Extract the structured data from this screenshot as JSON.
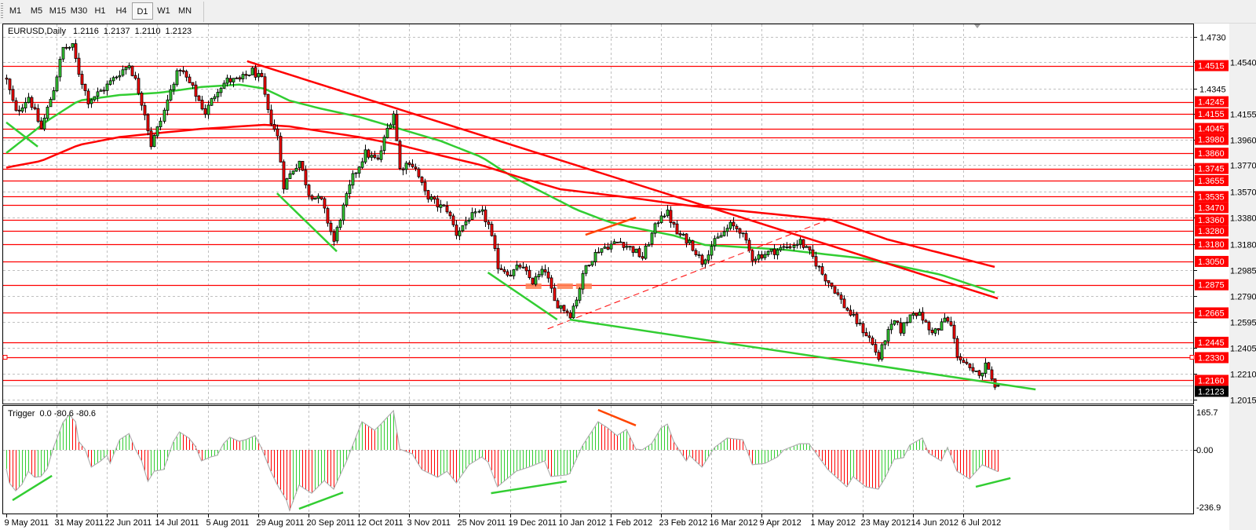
{
  "toolbar": {
    "timeframes": [
      "M1",
      "M5",
      "M15",
      "M30",
      "H1",
      "H4",
      "D1",
      "W1",
      "MN"
    ],
    "selected": "D1"
  },
  "chart": {
    "symbol": "EURUSD,Daily",
    "ohlc": [
      "1.2116",
      "1.2137",
      "1.2110",
      "1.2123"
    ]
  },
  "chart_data": {
    "type": "candlestick",
    "symbol": "EURUSD",
    "timeframe": "Daily",
    "last_bar": {
      "open": 1.2116,
      "high": 1.2137,
      "low": 1.211,
      "close": 1.2123
    },
    "close_path": [
      [
        0,
        1.4404
      ],
      [
        3,
        1.4162
      ],
      [
        7,
        1.4283
      ],
      [
        11,
        1.4042
      ],
      [
        15,
        1.4343
      ],
      [
        18,
        1.4645
      ],
      [
        21,
        1.4656
      ],
      [
        23,
        1.4463
      ],
      [
        26,
        1.4253
      ],
      [
        31,
        1.4343
      ],
      [
        36,
        1.4463
      ],
      [
        39,
        1.4524
      ],
      [
        41,
        1.4404
      ],
      [
        44,
        1.4162
      ],
      [
        46,
        1.3921
      ],
      [
        49,
        1.4102
      ],
      [
        53,
        1.4404
      ],
      [
        55,
        1.4494
      ],
      [
        59,
        1.4343
      ],
      [
        63,
        1.4162
      ],
      [
        67,
        1.4343
      ],
      [
        70,
        1.4404
      ],
      [
        74,
        1.4404
      ],
      [
        78,
        1.4476
      ],
      [
        81,
        1.4404
      ],
      [
        83,
        1.4162
      ],
      [
        86,
        1.3981
      ],
      [
        88,
        1.362
      ],
      [
        91,
        1.374
      ],
      [
        93,
        1.3801
      ],
      [
        96,
        1.356
      ],
      [
        100,
        1.3499
      ],
      [
        104,
        1.3198
      ],
      [
        106,
        1.3379
      ],
      [
        110,
        1.368
      ],
      [
        114,
        1.3861
      ],
      [
        118,
        1.3801
      ],
      [
        121,
        1.4042
      ],
      [
        123,
        1.4162
      ],
      [
        125,
        1.374
      ],
      [
        128,
        1.3801
      ],
      [
        130,
        1.374
      ],
      [
        133,
        1.356
      ],
      [
        137,
        1.347
      ],
      [
        140,
        1.3439
      ],
      [
        143,
        1.3258
      ],
      [
        147,
        1.3379
      ],
      [
        151,
        1.3409
      ],
      [
        153,
        1.3319
      ],
      [
        156,
        1.3017
      ],
      [
        160,
        1.2957
      ],
      [
        163,
        1.3017
      ],
      [
        167,
        1.2896
      ],
      [
        171,
        1.2988
      ],
      [
        174,
        1.2746
      ],
      [
        176,
        1.2716
      ],
      [
        179,
        1.2655
      ],
      [
        181,
        1.2776
      ],
      [
        184,
        1.3017
      ],
      [
        188,
        1.3137
      ],
      [
        191,
        1.3168
      ],
      [
        195,
        1.3198
      ],
      [
        199,
        1.3137
      ],
      [
        202,
        1.3078
      ],
      [
        204,
        1.3198
      ],
      [
        208,
        1.3409
      ],
      [
        210,
        1.3409
      ],
      [
        213,
        1.3258
      ],
      [
        217,
        1.3198
      ],
      [
        221,
        1.3047
      ],
      [
        224,
        1.3168
      ],
      [
        230,
        1.3319
      ],
      [
        233,
        1.3288
      ],
      [
        237,
        1.3078
      ],
      [
        241,
        1.3108
      ],
      [
        245,
        1.3137
      ],
      [
        249,
        1.3168
      ],
      [
        252,
        1.3198
      ],
      [
        256,
        1.3078
      ],
      [
        259,
        1.2957
      ],
      [
        263,
        1.2837
      ],
      [
        266,
        1.2716
      ],
      [
        270,
        1.2596
      ],
      [
        274,
        1.2475
      ],
      [
        277,
        1.2324
      ],
      [
        279,
        1.2475
      ],
      [
        282,
        1.2596
      ],
      [
        284,
        1.2535
      ],
      [
        288,
        1.2686
      ],
      [
        291,
        1.2625
      ],
      [
        293,
        1.2535
      ],
      [
        296,
        1.2535
      ],
      [
        298,
        1.2625
      ],
      [
        300,
        1.2565
      ],
      [
        302,
        1.2355
      ],
      [
        305,
        1.2263
      ],
      [
        307,
        1.2204
      ],
      [
        310,
        1.2234
      ],
      [
        311,
        1.227
      ],
      [
        312,
        1.227
      ],
      [
        313,
        1.216
      ],
      [
        314,
        1.2135
      ],
      [
        315,
        1.2123
      ]
    ],
    "moving_averages": [
      {
        "color": "#32cd32",
        "points": [
          [
            0,
            1.3861
          ],
          [
            13,
            1.4102
          ],
          [
            23,
            1.4253
          ],
          [
            36,
            1.4295
          ],
          [
            49,
            1.4313
          ],
          [
            62,
            1.4355
          ],
          [
            74,
            1.4373
          ],
          [
            82,
            1.4343
          ],
          [
            90,
            1.4253
          ],
          [
            100,
            1.4193
          ],
          [
            112,
            1.4132
          ],
          [
            125,
            1.4042
          ],
          [
            138,
            1.3951
          ],
          [
            151,
            1.3831
          ],
          [
            161,
            1.368
          ],
          [
            171,
            1.356
          ],
          [
            181,
            1.3439
          ],
          [
            191,
            1.3349
          ],
          [
            197,
            1.3314
          ],
          [
            212,
            1.3244
          ],
          [
            222,
            1.3173
          ],
          [
            247,
            1.3138
          ],
          [
            272,
            1.3073
          ],
          [
            297,
            1.295
          ],
          [
            315,
            1.2809
          ]
        ]
      },
      {
        "color": "#ff0000",
        "points": [
          [
            0,
            1.3752
          ],
          [
            11,
            1.3801
          ],
          [
            23,
            1.3921
          ],
          [
            36,
            1.3981
          ],
          [
            49,
            1.4012
          ],
          [
            62,
            1.4042
          ],
          [
            74,
            1.406
          ],
          [
            82,
            1.4072
          ],
          [
            90,
            1.406
          ],
          [
            100,
            1.4024
          ],
          [
            112,
            1.3981
          ],
          [
            125,
            1.3921
          ],
          [
            138,
            1.3843
          ],
          [
            151,
            1.377
          ],
          [
            163,
            1.368
          ],
          [
            176,
            1.359
          ],
          [
            197,
            1.3531
          ],
          [
            217,
            1.3467
          ],
          [
            262,
            1.3361
          ],
          [
            280,
            1.3214
          ],
          [
            315,
            1.3003
          ]
        ]
      }
    ],
    "horizontal_levels": [
      "1.4515",
      "1.4245",
      "1.4155",
      "1.4045",
      "1.3980",
      "1.3860",
      "1.3745",
      "1.3655",
      "1.3535",
      "1.3470",
      "1.3360",
      "1.3280",
      "1.3180",
      "1.3050",
      "1.2875",
      "1.2665",
      "1.2445",
      "1.2330",
      "1.2160"
    ],
    "current_price": "1.2123",
    "price_ticks": [
      "1.4730",
      "1.4540",
      "1.4345",
      "1.4155",
      "1.3960",
      "1.3770",
      "1.3570",
      "1.3380",
      "1.3180",
      "1.2985",
      "1.2790",
      "1.2595",
      "1.2405",
      "1.2210",
      "1.2015"
    ],
    "date_labels": [
      "9 May 2011",
      "31 May 2011",
      "22 Jun 2011",
      "14 Jul 2011",
      "5 Aug 2011",
      "29 Aug 2011",
      "20 Sep 2011",
      "12 Oct 2011",
      "3 Nov 2011",
      "25 Nov 2011",
      "19 Dec 2011",
      "10 Jan 2012",
      "1 Feb 2012",
      "23 Feb 2012",
      "16 Mar 2012",
      "9 Apr 2012",
      "1 May 2012",
      "23 May 2012",
      "14 Jun 2012",
      "6 Jul 2012"
    ],
    "trendlines": [
      {
        "color": "#ff0000",
        "style": "solid",
        "from": [
          76.5,
          1.4548
        ],
        "to": [
          315,
          1.2773
        ]
      },
      {
        "color": "#ff0000",
        "style": "dashed",
        "from": [
          172,
          1.2545
        ],
        "to": [
          261,
          1.3361
        ]
      },
      {
        "color": "#ff4500",
        "style": "solid",
        "from": [
          184,
          1.3249
        ],
        "to": [
          200,
          1.3378
        ]
      },
      {
        "color": "#32cd32",
        "style": "solid",
        "from": [
          179,
          1.2615
        ],
        "to": [
          327,
          1.2092
        ]
      },
      {
        "color": "#32cd32",
        "style": "solid",
        "from": [
          0,
          1.409
        ],
        "to": [
          10,
          1.3909
        ]
      },
      {
        "color": "#32cd32",
        "style": "solid",
        "from": [
          86,
          1.356
        ],
        "to": [
          105,
          1.3125
        ]
      },
      {
        "color": "#32cd32",
        "style": "solid",
        "from": [
          153,
          1.2967
        ],
        "to": [
          175,
          1.2615
        ]
      }
    ],
    "zones": [
      {
        "color": "#ff7f50",
        "from": [
          165,
          1.2885
        ],
        "to": [
          170,
          1.2844
        ]
      },
      {
        "color": "#ff7f50",
        "from": [
          175,
          1.2885
        ],
        "to": [
          180,
          1.2844
        ]
      },
      {
        "color": "#ff7f50",
        "from": [
          181,
          1.2885
        ],
        "to": [
          186,
          1.2844
        ]
      }
    ],
    "indicator": {
      "name": "Trigger",
      "values_label": "0.0 -80.6 -80.6",
      "ticks": [
        "165.7",
        "0.00",
        "-236.9"
      ],
      "range": [
        -236.9,
        165.7
      ],
      "rising_color": "#32cd32",
      "falling_color": "#ff0000",
      "points": [
        [
          0,
          -70
        ],
        [
          1,
          -123
        ],
        [
          3,
          -152
        ],
        [
          5,
          -128
        ],
        [
          7,
          -79
        ],
        [
          9,
          -102
        ],
        [
          11,
          -99
        ],
        [
          13,
          -70
        ],
        [
          15,
          9
        ],
        [
          18,
          102
        ],
        [
          20,
          131
        ],
        [
          22,
          105
        ],
        [
          23,
          32
        ],
        [
          25,
          3
        ],
        [
          27,
          -64
        ],
        [
          30,
          -41
        ],
        [
          32,
          -20
        ],
        [
          33,
          -50
        ],
        [
          36,
          38
        ],
        [
          39,
          61
        ],
        [
          41,
          3
        ],
        [
          43,
          -41
        ],
        [
          45,
          -117
        ],
        [
          47,
          -79
        ],
        [
          50,
          -73
        ],
        [
          53,
          29
        ],
        [
          55,
          67
        ],
        [
          58,
          44
        ],
        [
          60,
          15
        ],
        [
          62,
          -41
        ],
        [
          65,
          -26
        ],
        [
          67,
          -20
        ],
        [
          69,
          23
        ],
        [
          71,
          47
        ],
        [
          74,
          32
        ],
        [
          76,
          38
        ],
        [
          79,
          53
        ],
        [
          81,
          9
        ],
        [
          84,
          -79
        ],
        [
          86,
          -128
        ],
        [
          89,
          -187
        ],
        [
          90,
          -225
        ],
        [
          93,
          -131
        ],
        [
          97,
          -161
        ],
        [
          101,
          -114
        ],
        [
          104,
          -146
        ],
        [
          108,
          -44
        ],
        [
          113,
          105
        ],
        [
          117,
          73
        ],
        [
          119,
          96
        ],
        [
          123,
          146
        ],
        [
          125,
          3
        ],
        [
          129,
          -15
        ],
        [
          132,
          -73
        ],
        [
          137,
          -102
        ],
        [
          140,
          -79
        ],
        [
          143,
          -123
        ],
        [
          147,
          -55
        ],
        [
          151,
          -26
        ],
        [
          153,
          -44
        ],
        [
          156,
          -137
        ],
        [
          162,
          -79
        ],
        [
          166,
          -64
        ],
        [
          171,
          -41
        ],
        [
          173,
          -99
        ],
        [
          178,
          -93
        ],
        [
          179,
          -88
        ],
        [
          183,
          15
        ],
        [
          188,
          105
        ],
        [
          191,
          82
        ],
        [
          194,
          53
        ],
        [
          197,
          76
        ],
        [
          200,
          3
        ],
        [
          202,
          0
        ],
        [
          205,
          23
        ],
        [
          208,
          82
        ],
        [
          210,
          96
        ],
        [
          212,
          32
        ],
        [
          216,
          -41
        ],
        [
          217,
          -20
        ],
        [
          221,
          -64
        ],
        [
          225,
          9
        ],
        [
          229,
          44
        ],
        [
          234,
          38
        ],
        [
          237,
          -55
        ],
        [
          241,
          -50
        ],
        [
          245,
          -26
        ],
        [
          247,
          0
        ],
        [
          252,
          23
        ],
        [
          255,
          23
        ],
        [
          261,
          -73
        ],
        [
          267,
          -137
        ],
        [
          269,
          -99
        ],
        [
          273,
          -137
        ],
        [
          277,
          -146
        ],
        [
          279,
          -108
        ],
        [
          282,
          -35
        ],
        [
          285,
          -29
        ],
        [
          287,
          18
        ],
        [
          291,
          44
        ],
        [
          293,
          -12
        ],
        [
          297,
          -41
        ],
        [
          299,
          9
        ],
        [
          302,
          -79
        ],
        [
          306,
          -108
        ],
        [
          310,
          -55
        ],
        [
          315,
          -80.6
        ]
      ],
      "trendlines": [
        {
          "color": "#32cd32",
          "from": [
            2,
            -187
          ],
          "to": [
            14.5,
            -96
          ]
        },
        {
          "color": "#32cd32",
          "from": [
            93,
            -219
          ],
          "to": [
            107,
            -158
          ]
        },
        {
          "color": "#32cd32",
          "from": [
            154,
            -161
          ],
          "to": [
            178,
            -117
          ]
        },
        {
          "color": "#ff4500",
          "from": [
            188,
            149
          ],
          "to": [
            200,
            91
          ]
        },
        {
          "color": "#32cd32",
          "from": [
            308,
            -137
          ],
          "to": [
            319,
            -105
          ]
        }
      ]
    }
  }
}
